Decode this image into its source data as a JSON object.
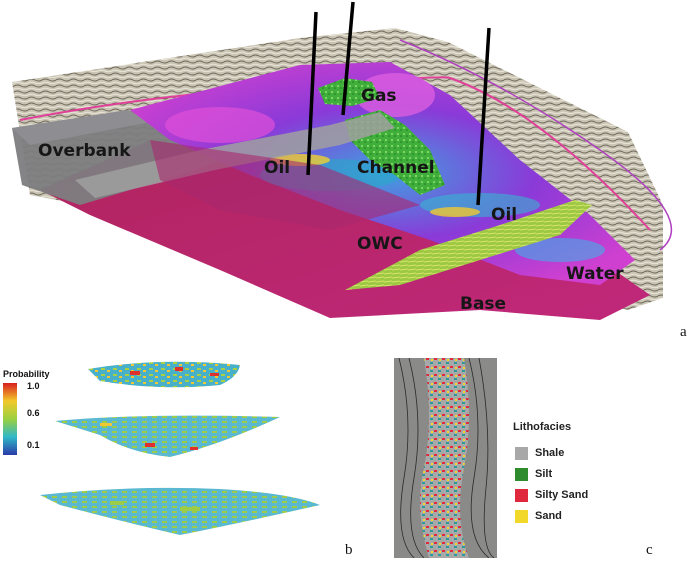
{
  "panel_a": {
    "labels": {
      "gas": "Gas",
      "overbank": "Overbank",
      "oil_left": "Oil",
      "channel": "Channel",
      "oil_right": "Oil",
      "owc": "OWC",
      "water": "Water",
      "base": "Base"
    },
    "panel_letter": "a"
  },
  "panel_b": {
    "legend_title": "Probability",
    "ticks": [
      "1.0",
      "0.6",
      "0.1"
    ],
    "panel_letter": "b"
  },
  "panel_c": {
    "legend_title": "Lithofacies",
    "items": [
      {
        "label": "Shale",
        "color": "#a8a8a8"
      },
      {
        "label": "Silt",
        "color": "#2e8b2e"
      },
      {
        "label": "Silty Sand",
        "color": "#e0283c"
      },
      {
        "label": "Sand",
        "color": "#f2d82a"
      }
    ],
    "panel_letter": "c"
  }
}
